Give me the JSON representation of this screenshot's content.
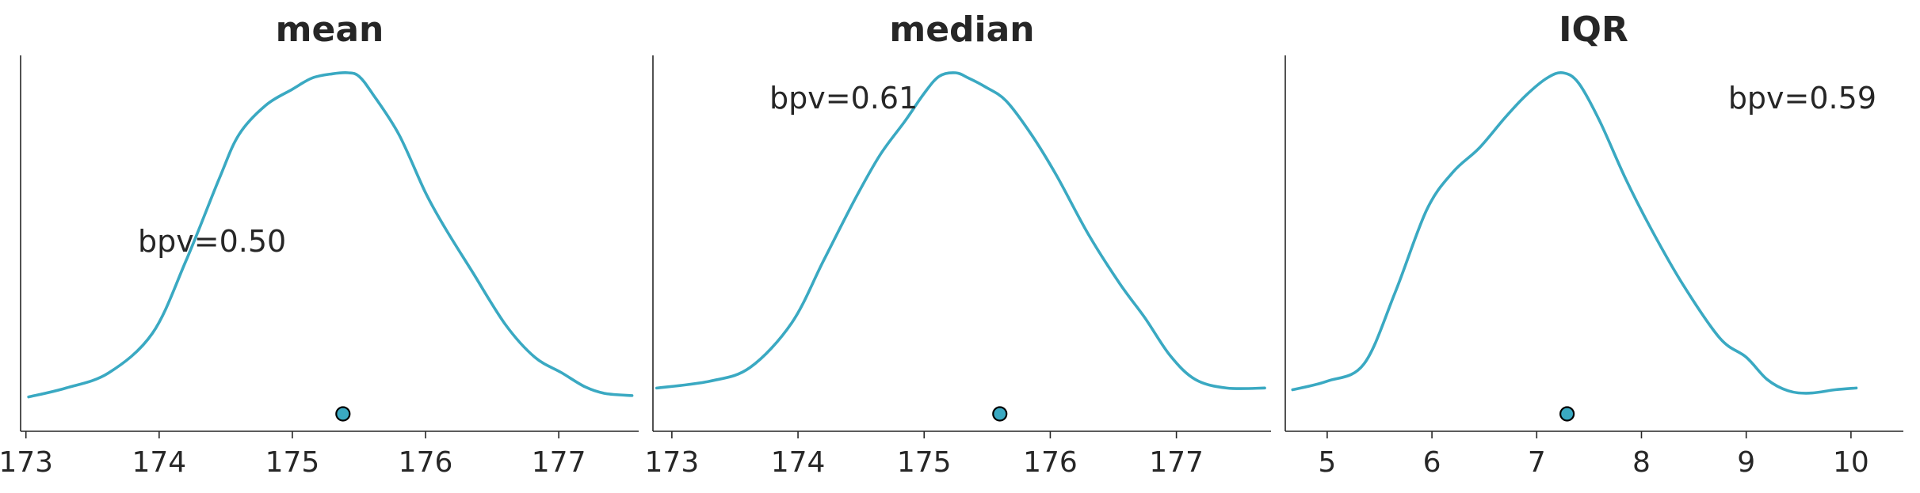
{
  "chart_data": [
    {
      "type": "line",
      "title": "mean",
      "xlabel": "",
      "ylabel": "",
      "xlim": [
        172.96,
        177.6
      ],
      "xticks": [
        173,
        174,
        175,
        176,
        177
      ],
      "xtick_labels": [
        "173",
        "174",
        "175",
        "176",
        "177"
      ],
      "grid": false,
      "line_color": "#3aa9c2",
      "series": [
        {
          "x": [
            173.02,
            173.3,
            173.62,
            173.95,
            174.2,
            174.45,
            174.6,
            174.8,
            175.0,
            175.15,
            175.3,
            175.42,
            175.5,
            175.6,
            175.8,
            176.0,
            176.15,
            176.35,
            176.6,
            176.82,
            177.02,
            177.2,
            177.35,
            177.55
          ],
          "y": [
            0.054,
            0.08,
            0.124,
            0.24,
            0.45,
            0.69,
            0.82,
            0.905,
            0.952,
            0.985,
            0.997,
            1.0,
            0.99,
            0.94,
            0.82,
            0.65,
            0.545,
            0.42,
            0.265,
            0.17,
            0.125,
            0.083,
            0.064,
            0.058
          ]
        }
      ],
      "observed": {
        "x": 175.38
      },
      "annotation": "bpv=0.50"
    },
    {
      "type": "line",
      "title": "median",
      "xlabel": "",
      "ylabel": "",
      "xlim": [
        172.85,
        177.75
      ],
      "xticks": [
        173,
        174,
        175,
        176,
        177
      ],
      "xtick_labels": [
        "173",
        "174",
        "175",
        "176",
        "177"
      ],
      "grid": false,
      "line_color": "#3aa9c2",
      "series": [
        {
          "x": [
            172.88,
            173.3,
            173.62,
            173.95,
            174.2,
            174.45,
            174.65,
            174.85,
            175.0,
            175.12,
            175.25,
            175.35,
            175.48,
            175.65,
            175.85,
            176.05,
            176.3,
            176.55,
            176.75,
            176.95,
            177.15,
            177.4,
            177.7
          ],
          "y": [
            0.08,
            0.1,
            0.14,
            0.27,
            0.45,
            0.63,
            0.76,
            0.86,
            0.94,
            0.99,
            1.0,
            0.985,
            0.96,
            0.918,
            0.82,
            0.7,
            0.53,
            0.385,
            0.285,
            0.175,
            0.105,
            0.08,
            0.08
          ]
        }
      ],
      "observed": {
        "x": 175.6
      },
      "annotation": "bpv=0.61"
    },
    {
      "type": "line",
      "title": "IQR",
      "xlabel": "",
      "ylabel": "",
      "xlim": [
        4.6,
        10.5
      ],
      "xticks": [
        5,
        6,
        7,
        8,
        9,
        10
      ],
      "xtick_labels": [
        "5",
        "6",
        "7",
        "8",
        "9",
        "10"
      ],
      "grid": false,
      "line_color": "#3aa9c2",
      "series": [
        {
          "x": [
            4.67,
            5.0,
            5.35,
            5.65,
            5.95,
            6.2,
            6.45,
            6.7,
            6.9,
            7.1,
            7.25,
            7.4,
            7.6,
            7.85,
            8.1,
            8.4,
            8.75,
            9.0,
            9.2,
            9.4,
            9.6,
            9.85,
            10.05
          ],
          "y": [
            0.075,
            0.1,
            0.15,
            0.36,
            0.6,
            0.71,
            0.78,
            0.87,
            0.935,
            0.985,
            1.0,
            0.97,
            0.86,
            0.69,
            0.54,
            0.38,
            0.225,
            0.17,
            0.105,
            0.072,
            0.065,
            0.075,
            0.08
          ]
        }
      ],
      "observed": {
        "x": 7.29
      },
      "annotation": "bpv=0.59"
    }
  ]
}
